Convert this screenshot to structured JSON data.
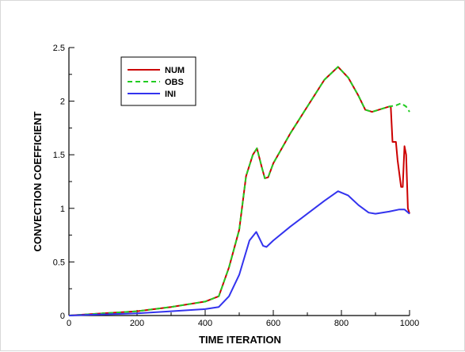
{
  "chart_data": {
    "type": "line",
    "title": "",
    "xlabel": "TIME ITERATION",
    "ylabel": "CONVECTION COEFFICIENT",
    "xlim": [
      0,
      1000
    ],
    "ylim": [
      0,
      2.5
    ],
    "xticks": [
      0,
      200,
      400,
      600,
      800,
      1000
    ],
    "yticks": [
      0,
      0.5,
      1,
      1.5,
      2,
      2.5
    ],
    "xtick_labels": [
      "0",
      "200",
      "400",
      "600",
      "800",
      "1000"
    ],
    "ytick_labels": [
      "0",
      "0.5",
      "1",
      "1.5",
      "2",
      "2.5"
    ],
    "grid": false,
    "legend_position": "top-left",
    "series": [
      {
        "name": "NUM",
        "color": "#cc0000",
        "style": "solid",
        "points": [
          [
            0,
            0
          ],
          [
            100,
            0.02
          ],
          [
            200,
            0.04
          ],
          [
            300,
            0.08
          ],
          [
            400,
            0.13
          ],
          [
            440,
            0.18
          ],
          [
            470,
            0.45
          ],
          [
            500,
            0.8
          ],
          [
            520,
            1.3
          ],
          [
            540,
            1.5
          ],
          [
            552,
            1.56
          ],
          [
            565,
            1.4
          ],
          [
            575,
            1.28
          ],
          [
            585,
            1.29
          ],
          [
            600,
            1.42
          ],
          [
            650,
            1.7
          ],
          [
            700,
            1.95
          ],
          [
            750,
            2.2
          ],
          [
            790,
            2.32
          ],
          [
            820,
            2.22
          ],
          [
            850,
            2.05
          ],
          [
            870,
            1.92
          ],
          [
            890,
            1.9
          ],
          [
            940,
            1.95
          ],
          [
            945,
            1.95
          ],
          [
            950,
            1.62
          ],
          [
            960,
            1.62
          ],
          [
            965,
            1.45
          ],
          [
            975,
            1.2
          ],
          [
            980,
            1.2
          ],
          [
            985,
            1.58
          ],
          [
            990,
            1.5
          ],
          [
            995,
            1.0
          ],
          [
            1000,
            0.95
          ]
        ]
      },
      {
        "name": "OBS",
        "color": "#22cc22",
        "style": "dashed",
        "points": [
          [
            0,
            0
          ],
          [
            100,
            0.02
          ],
          [
            200,
            0.04
          ],
          [
            300,
            0.08
          ],
          [
            400,
            0.13
          ],
          [
            440,
            0.18
          ],
          [
            470,
            0.45
          ],
          [
            500,
            0.8
          ],
          [
            520,
            1.3
          ],
          [
            540,
            1.5
          ],
          [
            552,
            1.56
          ],
          [
            565,
            1.4
          ],
          [
            575,
            1.28
          ],
          [
            585,
            1.29
          ],
          [
            600,
            1.42
          ],
          [
            650,
            1.7
          ],
          [
            700,
            1.95
          ],
          [
            750,
            2.2
          ],
          [
            790,
            2.32
          ],
          [
            820,
            2.22
          ],
          [
            850,
            2.05
          ],
          [
            870,
            1.92
          ],
          [
            890,
            1.9
          ],
          [
            940,
            1.95
          ],
          [
            960,
            1.96
          ],
          [
            975,
            1.98
          ],
          [
            990,
            1.95
          ],
          [
            1000,
            1.9
          ]
        ]
      },
      {
        "name": "INI",
        "color": "#3333ee",
        "style": "solid",
        "points": [
          [
            0,
            0
          ],
          [
            100,
            0.01
          ],
          [
            200,
            0.02
          ],
          [
            300,
            0.04
          ],
          [
            400,
            0.06
          ],
          [
            440,
            0.08
          ],
          [
            470,
            0.18
          ],
          [
            500,
            0.38
          ],
          [
            530,
            0.7
          ],
          [
            550,
            0.78
          ],
          [
            570,
            0.65
          ],
          [
            580,
            0.64
          ],
          [
            600,
            0.7
          ],
          [
            650,
            0.83
          ],
          [
            700,
            0.95
          ],
          [
            750,
            1.07
          ],
          [
            790,
            1.16
          ],
          [
            820,
            1.12
          ],
          [
            850,
            1.03
          ],
          [
            880,
            0.96
          ],
          [
            900,
            0.95
          ],
          [
            940,
            0.97
          ],
          [
            970,
            0.99
          ],
          [
            985,
            0.99
          ],
          [
            1000,
            0.95
          ]
        ]
      }
    ]
  }
}
